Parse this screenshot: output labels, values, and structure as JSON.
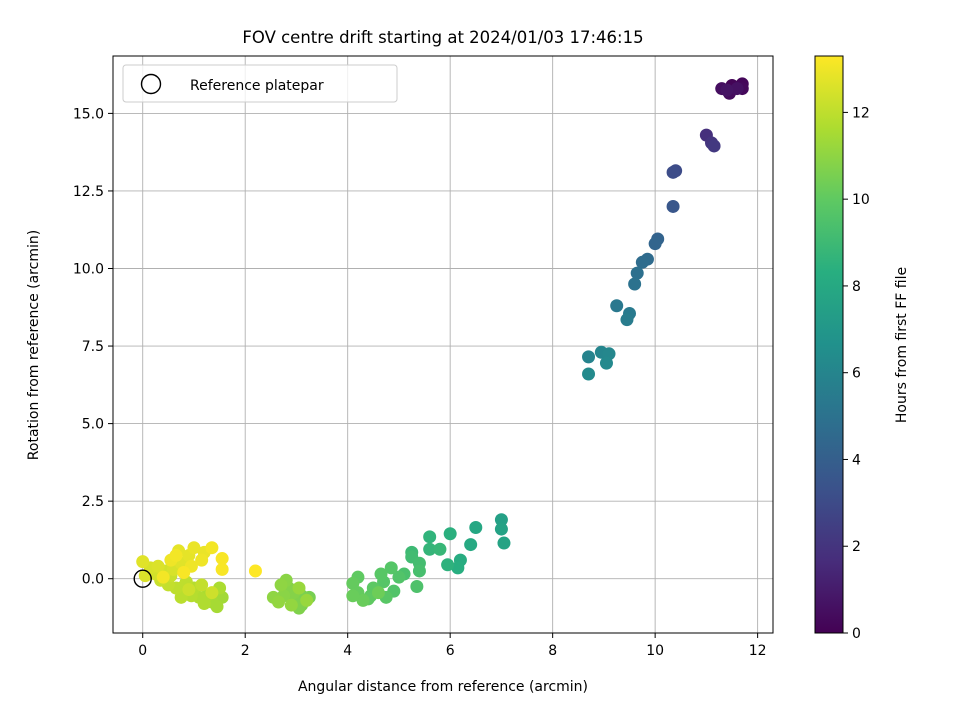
{
  "chart_data": {
    "type": "scatter",
    "title": "FOV centre drift starting at 2024/01/03 17:46:15",
    "xlabel": "Angular distance from reference (arcmin)",
    "ylabel": "Rotation from reference (arcmin)",
    "xlim": [
      -0.58,
      12.3
    ],
    "ylim": [
      -1.75,
      16.85
    ],
    "xticks": [
      0,
      2,
      4,
      6,
      8,
      10,
      12
    ],
    "xtick_labels": [
      "0",
      "2",
      "4",
      "6",
      "8",
      "10",
      "12"
    ],
    "yticks": [
      0.0,
      2.5,
      5.0,
      7.5,
      10.0,
      12.5,
      15.0
    ],
    "ytick_labels": [
      "0.0",
      "2.5",
      "5.0",
      "7.5",
      "10.0",
      "12.5",
      "15.0"
    ],
    "grid": true,
    "legend": {
      "position": "top-left",
      "entries": [
        "Reference platepar"
      ]
    },
    "reference_point": {
      "x": 0,
      "y": 0
    },
    "colorbar": {
      "label": "Hours from first FF file",
      "colormap": "viridis",
      "range": [
        0,
        13.3
      ],
      "ticks": [
        0,
        2,
        4,
        6,
        8,
        10,
        12
      ],
      "tick_labels": [
        "0",
        "2",
        "4",
        "6",
        "8",
        "10",
        "12"
      ]
    },
    "points": [
      {
        "x": 11.5,
        "y": 15.9,
        "c": 0.1
      },
      {
        "x": 11.7,
        "y": 15.95,
        "c": 0.2
      },
      {
        "x": 11.7,
        "y": 15.8,
        "c": 0.3
      },
      {
        "x": 11.45,
        "y": 15.65,
        "c": 0.4
      },
      {
        "x": 11.3,
        "y": 15.8,
        "c": 0.5
      },
      {
        "x": 11.6,
        "y": 15.8,
        "c": 0.6
      },
      {
        "x": 11.4,
        "y": 15.75,
        "c": 0.7
      },
      {
        "x": 11.0,
        "y": 14.3,
        "c": 1.8
      },
      {
        "x": 11.1,
        "y": 14.05,
        "c": 2.0
      },
      {
        "x": 11.15,
        "y": 13.95,
        "c": 2.2
      },
      {
        "x": 10.4,
        "y": 13.15,
        "c": 3.0
      },
      {
        "x": 10.35,
        "y": 13.1,
        "c": 3.1
      },
      {
        "x": 10.35,
        "y": 12.0,
        "c": 3.6
      },
      {
        "x": 10.05,
        "y": 10.95,
        "c": 4.2
      },
      {
        "x": 10.0,
        "y": 10.8,
        "c": 4.3
      },
      {
        "x": 9.85,
        "y": 10.3,
        "c": 4.6
      },
      {
        "x": 9.75,
        "y": 10.2,
        "c": 4.7
      },
      {
        "x": 9.65,
        "y": 9.85,
        "c": 4.9
      },
      {
        "x": 9.6,
        "y": 9.5,
        "c": 5.0
      },
      {
        "x": 9.25,
        "y": 8.8,
        "c": 5.3
      },
      {
        "x": 9.5,
        "y": 8.55,
        "c": 5.4
      },
      {
        "x": 9.45,
        "y": 8.35,
        "c": 5.5
      },
      {
        "x": 8.7,
        "y": 7.15,
        "c": 5.9
      },
      {
        "x": 8.95,
        "y": 7.3,
        "c": 6.0
      },
      {
        "x": 9.1,
        "y": 7.25,
        "c": 6.1
      },
      {
        "x": 9.05,
        "y": 6.95,
        "c": 6.2
      },
      {
        "x": 8.7,
        "y": 6.6,
        "c": 6.3
      },
      {
        "x": 7.0,
        "y": 1.9,
        "c": 7.5
      },
      {
        "x": 7.0,
        "y": 1.6,
        "c": 7.6
      },
      {
        "x": 7.05,
        "y": 1.15,
        "c": 7.7
      },
      {
        "x": 6.5,
        "y": 1.65,
        "c": 7.9
      },
      {
        "x": 6.4,
        "y": 1.1,
        "c": 8.0
      },
      {
        "x": 6.2,
        "y": 0.6,
        "c": 8.2
      },
      {
        "x": 6.15,
        "y": 0.35,
        "c": 8.3
      },
      {
        "x": 6.0,
        "y": 1.45,
        "c": 8.4
      },
      {
        "x": 5.95,
        "y": 0.45,
        "c": 8.5
      },
      {
        "x": 5.6,
        "y": 1.35,
        "c": 8.6
      },
      {
        "x": 5.6,
        "y": 0.95,
        "c": 8.7
      },
      {
        "x": 5.8,
        "y": 0.95,
        "c": 8.8
      },
      {
        "x": 5.25,
        "y": 0.85,
        "c": 9.0
      },
      {
        "x": 5.25,
        "y": 0.7,
        "c": 9.1
      },
      {
        "x": 5.4,
        "y": 0.5,
        "c": 9.2
      },
      {
        "x": 5.4,
        "y": 0.25,
        "c": 9.3
      },
      {
        "x": 5.1,
        "y": 0.15,
        "c": 9.4
      },
      {
        "x": 5.35,
        "y": -0.25,
        "c": 9.5
      },
      {
        "x": 5.0,
        "y": 0.05,
        "c": 9.6
      },
      {
        "x": 4.9,
        "y": -0.4,
        "c": 9.6
      },
      {
        "x": 4.85,
        "y": 0.35,
        "c": 9.7
      },
      {
        "x": 4.7,
        "y": -0.1,
        "c": 9.7
      },
      {
        "x": 4.65,
        "y": 0.15,
        "c": 9.8
      },
      {
        "x": 4.75,
        "y": -0.6,
        "c": 9.8
      },
      {
        "x": 4.5,
        "y": -0.3,
        "c": 9.9
      },
      {
        "x": 4.45,
        "y": -0.55,
        "c": 9.9
      },
      {
        "x": 4.4,
        "y": -0.65,
        "c": 10.0
      },
      {
        "x": 4.2,
        "y": 0.05,
        "c": 10.0
      },
      {
        "x": 4.1,
        "y": -0.15,
        "c": 10.1
      },
      {
        "x": 4.2,
        "y": -0.45,
        "c": 10.1
      },
      {
        "x": 4.3,
        "y": -0.7,
        "c": 10.2
      },
      {
        "x": 4.1,
        "y": -0.55,
        "c": 10.2
      },
      {
        "x": 4.6,
        "y": -0.45,
        "c": 10.3
      },
      {
        "x": 3.25,
        "y": -0.6,
        "c": 10.5
      },
      {
        "x": 3.1,
        "y": -0.55,
        "c": 10.6
      },
      {
        "x": 3.1,
        "y": -0.85,
        "c": 10.6
      },
      {
        "x": 3.05,
        "y": -0.95,
        "c": 10.7
      },
      {
        "x": 2.95,
        "y": -0.7,
        "c": 10.7
      },
      {
        "x": 2.95,
        "y": -0.45,
        "c": 10.8
      },
      {
        "x": 2.85,
        "y": -0.3,
        "c": 10.8
      },
      {
        "x": 2.75,
        "y": -0.55,
        "c": 10.9
      },
      {
        "x": 2.8,
        "y": -0.05,
        "c": 10.9
      },
      {
        "x": 2.7,
        "y": -0.2,
        "c": 11.0
      },
      {
        "x": 2.55,
        "y": -0.6,
        "c": 11.0
      },
      {
        "x": 2.65,
        "y": -0.75,
        "c": 11.1
      },
      {
        "x": 2.9,
        "y": -0.85,
        "c": 11.1
      },
      {
        "x": 3.05,
        "y": -0.3,
        "c": 11.2
      },
      {
        "x": 3.2,
        "y": -0.7,
        "c": 11.2
      },
      {
        "x": 1.55,
        "y": -0.6,
        "c": 11.4
      },
      {
        "x": 1.45,
        "y": -0.9,
        "c": 11.5
      },
      {
        "x": 1.35,
        "y": -0.75,
        "c": 11.5
      },
      {
        "x": 1.5,
        "y": -0.3,
        "c": 11.6
      },
      {
        "x": 1.25,
        "y": -0.55,
        "c": 11.6
      },
      {
        "x": 1.2,
        "y": -0.8,
        "c": 11.7
      },
      {
        "x": 1.1,
        "y": -0.6,
        "c": 11.7
      },
      {
        "x": 1.0,
        "y": -0.3,
        "c": 11.8
      },
      {
        "x": 0.95,
        "y": -0.55,
        "c": 11.8
      },
      {
        "x": 0.8,
        "y": -0.25,
        "c": 11.9
      },
      {
        "x": 0.75,
        "y": -0.6,
        "c": 11.9
      },
      {
        "x": 0.65,
        "y": -0.3,
        "c": 12.0
      },
      {
        "x": 0.85,
        "y": -0.1,
        "c": 12.0
      },
      {
        "x": 1.15,
        "y": -0.2,
        "c": 12.1
      },
      {
        "x": 0.5,
        "y": -0.2,
        "c": 12.1
      },
      {
        "x": 0.35,
        "y": -0.05,
        "c": 12.2
      },
      {
        "x": 0.55,
        "y": 0.1,
        "c": 12.2
      },
      {
        "x": 0.9,
        "y": -0.35,
        "c": 12.3
      },
      {
        "x": 1.35,
        "y": -0.45,
        "c": 12.3
      },
      {
        "x": 0.25,
        "y": 0.15,
        "c": 12.4
      },
      {
        "x": 0.45,
        "y": 0.25,
        "c": 12.4
      },
      {
        "x": 0.6,
        "y": 0.3,
        "c": 12.5
      },
      {
        "x": 0.15,
        "y": 0.35,
        "c": 12.5
      },
      {
        "x": 0.3,
        "y": 0.4,
        "c": 12.6
      },
      {
        "x": 0.05,
        "y": 0.1,
        "c": 12.6
      },
      {
        "x": 0.0,
        "y": 0.55,
        "c": 12.7
      },
      {
        "x": 0.75,
        "y": 0.5,
        "c": 12.7
      },
      {
        "x": 0.9,
        "y": 0.75,
        "c": 12.8
      },
      {
        "x": 0.7,
        "y": 0.9,
        "c": 12.8
      },
      {
        "x": 1.0,
        "y": 1.0,
        "c": 12.9
      },
      {
        "x": 1.2,
        "y": 0.85,
        "c": 12.9
      },
      {
        "x": 1.15,
        "y": 0.6,
        "c": 13.0
      },
      {
        "x": 0.95,
        "y": 0.4,
        "c": 13.0
      },
      {
        "x": 0.55,
        "y": 0.6,
        "c": 13.0
      },
      {
        "x": 0.4,
        "y": 0.05,
        "c": 13.1
      },
      {
        "x": 1.35,
        "y": 1.0,
        "c": 13.1
      },
      {
        "x": 1.55,
        "y": 0.65,
        "c": 13.2
      },
      {
        "x": 1.55,
        "y": 0.3,
        "c": 13.2
      },
      {
        "x": 2.2,
        "y": 0.25,
        "c": 13.3
      },
      {
        "x": 0.8,
        "y": 0.2,
        "c": 13.2
      },
      {
        "x": 0.65,
        "y": 0.75,
        "c": 13.1
      }
    ]
  }
}
